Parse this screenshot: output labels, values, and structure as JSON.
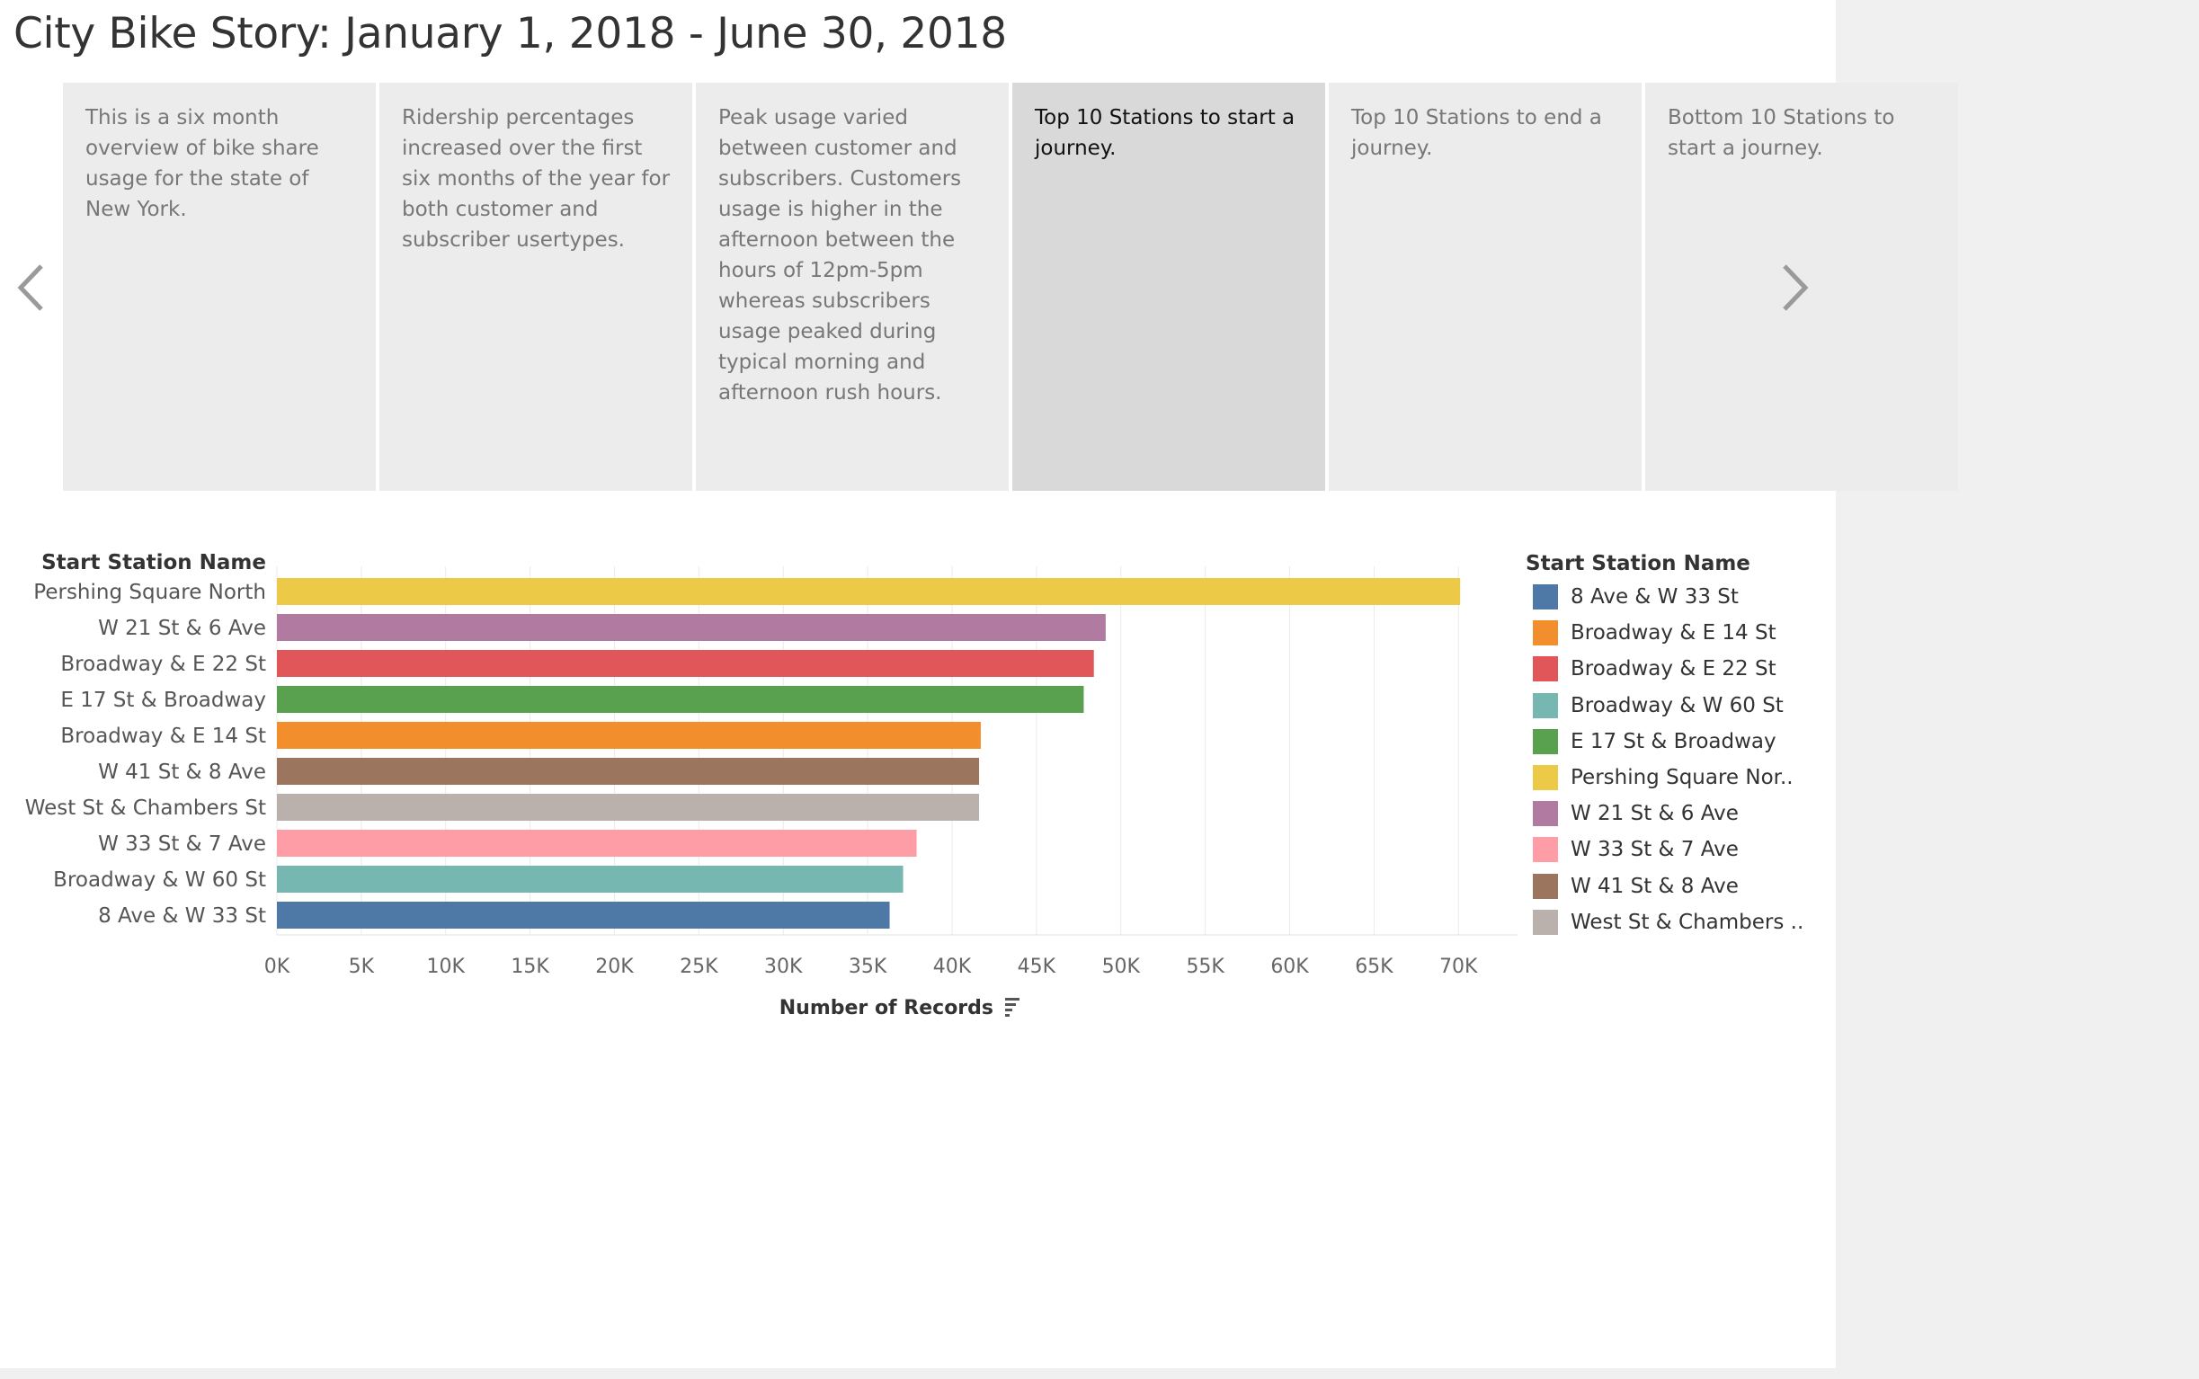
{
  "title": "City Bike Story: January 1, 2018 - June 30, 2018",
  "story_points": [
    {
      "text": "This is a six month overview of bike share usage for the state of New York.",
      "active": false
    },
    {
      "text": "Ridership percentages increased over the first six months of the year for both customer and subscriber usertypes.",
      "active": false
    },
    {
      "text": "Peak usage varied between customer and subscribers. Customers usage is higher in the afternoon between the hours of 12pm-5pm whereas subscribers usage peaked during typical morning and afternoon rush hours.",
      "active": false
    },
    {
      "text": "Top 10 Stations to start a journey.",
      "active": true
    },
    {
      "text": "Top 10 Stations to end a journey.",
      "active": false
    },
    {
      "text": "Bottom 10 Stations to start a journey.",
      "active": false
    }
  ],
  "nav": {
    "prev_icon": "chevron-left-icon",
    "next_icon": "chevron-right-icon"
  },
  "chart_data": {
    "type": "bar",
    "orientation": "horizontal",
    "row_header": "Start Station Name",
    "xlabel": "Number of Records",
    "categories": [
      "Pershing Square North",
      "W 21 St & 6 Ave",
      "Broadway & E 22 St",
      "E 17 St & Broadway",
      "Broadway & E 14 St",
      "W 41 St & 8 Ave",
      "West St & Chambers St",
      "W 33 St & 7 Ave",
      "Broadway & W 60 St",
      "8 Ave & W 33 St"
    ],
    "values": [
      70100,
      49100,
      48400,
      47800,
      41700,
      41600,
      41600,
      37900,
      37100,
      36300
    ],
    "colors": [
      "#edc948",
      "#b07aa1",
      "#e15759",
      "#59a14f",
      "#f28e2b",
      "#9c755f",
      "#bab0ac",
      "#ff9da7",
      "#76b7b2",
      "#4e79a7"
    ],
    "x_ticks": [
      "0K",
      "5K",
      "10K",
      "15K",
      "20K",
      "25K",
      "30K",
      "35K",
      "40K",
      "45K",
      "50K",
      "55K",
      "60K",
      "65K",
      "70K"
    ],
    "xlim": [
      0,
      73500
    ],
    "grid": true,
    "sort_icon": "sort-descending-icon"
  },
  "legend": {
    "title": "Start Station Name",
    "items": [
      {
        "label": "8 Ave & W 33 St",
        "color": "#4e79a7"
      },
      {
        "label": "Broadway & E 14 St",
        "color": "#f28e2b"
      },
      {
        "label": "Broadway & E 22 St",
        "color": "#e15759"
      },
      {
        "label": "Broadway & W 60 St",
        "color": "#76b7b2"
      },
      {
        "label": "E 17 St & Broadway",
        "color": "#59a14f"
      },
      {
        "label": "Pershing Square Nor..",
        "color": "#edc948"
      },
      {
        "label": "W 21 St & 6 Ave",
        "color": "#b07aa1"
      },
      {
        "label": "W 33 St & 7 Ave",
        "color": "#ff9da7"
      },
      {
        "label": "W 41 St & 8 Ave",
        "color": "#9c755f"
      },
      {
        "label": "West St & Chambers ..",
        "color": "#bab0ac"
      }
    ]
  }
}
